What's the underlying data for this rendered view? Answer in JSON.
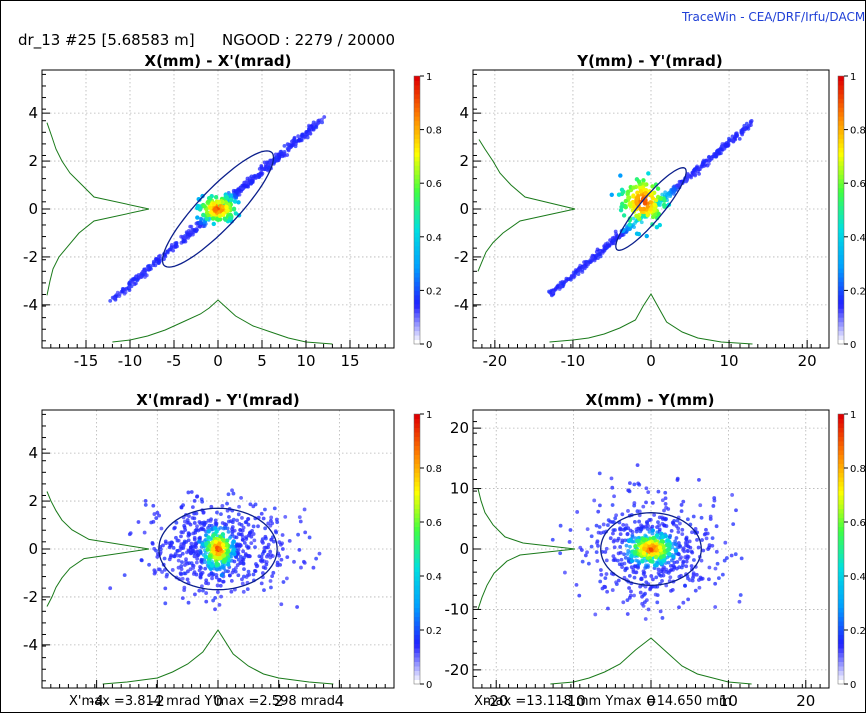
{
  "header": {
    "info": "dr_13 #25 [5.68583 m]",
    "ngood": "NGOOD : 2279 / 20000",
    "brand": "TraceWin - CEA/DRF/Irfu/DACM"
  },
  "colors": {
    "frame": "#000000",
    "grid": "#b4b4b4",
    "ellipse": "#0b1f8c",
    "profile": "#1a7a1a",
    "colormap": [
      "#ffffff",
      "#1f1fff",
      "#00a0ff",
      "#00e0e0",
      "#40ff40",
      "#ffff00",
      "#ff8000",
      "#e00000"
    ]
  },
  "footers": {
    "left": "X'max =3.814 mrad  Y'max =2.598 mrad",
    "right": "Xmax =13.118 mm  Ymax =14.650 mm"
  },
  "chart_data": [
    {
      "type": "scatter",
      "id": "xxp",
      "title": "X(mm) - X'(mrad)",
      "xlabel": "",
      "ylabel": "",
      "xlim": [
        -20,
        20
      ],
      "ylim": [
        -5.8,
        5.8
      ],
      "xticks": [
        -15,
        -10,
        -5,
        0,
        5,
        10,
        15
      ],
      "yticks": [
        4,
        2,
        0,
        -2,
        -4
      ],
      "grid": true,
      "colorbar": {
        "range": [
          0,
          1
        ],
        "ticks": [
          "1",
          "0.8",
          "0.6",
          "0.4",
          "0.2",
          "0"
        ]
      },
      "ellipse": {
        "center": [
          0,
          0
        ],
        "semi_major": [
          6.3,
          2.2
        ],
        "semi_minor": [
          -1.0,
          1.0
        ]
      },
      "distribution": {
        "axis": [
          12.0,
          3.8
        ],
        "spread": 0.35,
        "n": 520,
        "core": [
          0,
          0
        ],
        "core_sd": [
          1.5,
          0.4
        ]
      },
      "profile_y": [
        [
          -3.6,
          0.3
        ],
        [
          -3.0,
          0.6
        ],
        [
          -2.5,
          0.9
        ],
        [
          -2.0,
          1.5
        ],
        [
          -1.5,
          2.5
        ],
        [
          -1.0,
          3.5
        ],
        [
          -0.5,
          5.0
        ],
        [
          0.0,
          10.5
        ],
        [
          0.5,
          5.0
        ],
        [
          1.0,
          3.8
        ],
        [
          1.5,
          2.6
        ],
        [
          2.0,
          1.8
        ],
        [
          2.5,
          1.2
        ],
        [
          3.0,
          0.8
        ],
        [
          3.6,
          0.3
        ]
      ],
      "profile_x": [
        [
          -12,
          0.2
        ],
        [
          -10,
          0.3
        ],
        [
          -8,
          0.5
        ],
        [
          -6,
          0.8
        ],
        [
          -4,
          1.2
        ],
        [
          -2,
          1.6
        ],
        [
          -1,
          1.9
        ],
        [
          0,
          2.3
        ],
        [
          1,
          1.9
        ],
        [
          2,
          1.5
        ],
        [
          4,
          1.0
        ],
        [
          6,
          0.7
        ],
        [
          8,
          0.4
        ],
        [
          10,
          0.2
        ],
        [
          13,
          0.1
        ]
      ]
    },
    {
      "type": "scatter",
      "id": "yyp",
      "title": "Y(mm) - Y'(mrad)",
      "xlabel": "",
      "ylabel": "",
      "xlim": [
        -22.8,
        22.8
      ],
      "ylim": [
        -5.8,
        5.8
      ],
      "xticks": [
        -20,
        -10,
        0,
        10,
        20
      ],
      "yticks": [
        4,
        2,
        0,
        -2,
        -4
      ],
      "grid": true,
      "colorbar": {
        "range": [
          0,
          1
        ],
        "ticks": [
          "1",
          "0.8",
          "0.6",
          "0.4",
          "0.2",
          "0"
        ]
      },
      "ellipse": {
        "center": [
          0,
          0
        ],
        "semi_major": [
          4.5,
          1.6
        ],
        "semi_minor": [
          -1.0,
          1.0
        ]
      },
      "distribution": {
        "axis": [
          13.0,
          3.6
        ],
        "spread": 0.3,
        "n": 480,
        "core": [
          -1.0,
          0.3
        ],
        "core_sd": [
          2.2,
          0.8
        ]
      },
      "profile_y": [
        [
          -2.6,
          0.3
        ],
        [
          -2.2,
          0.7
        ],
        [
          -1.8,
          1.1
        ],
        [
          -1.4,
          1.8
        ],
        [
          -1.0,
          2.8
        ],
        [
          -0.5,
          4.5
        ],
        [
          0.0,
          10.0
        ],
        [
          0.5,
          5.0
        ],
        [
          1.0,
          3.6
        ],
        [
          1.5,
          2.5
        ],
        [
          2.0,
          1.8
        ],
        [
          2.5,
          1.0
        ],
        [
          2.9,
          0.4
        ]
      ],
      "profile_x": [
        [
          -13,
          0.2
        ],
        [
          -10,
          0.3
        ],
        [
          -8,
          0.4
        ],
        [
          -6,
          0.6
        ],
        [
          -4,
          0.9
        ],
        [
          -2,
          1.3
        ],
        [
          -1,
          2.0
        ],
        [
          0,
          2.6
        ],
        [
          1,
          1.9
        ],
        [
          2,
          1.2
        ],
        [
          4,
          0.7
        ],
        [
          6,
          0.4
        ],
        [
          9,
          0.2
        ],
        [
          13,
          0.1
        ]
      ]
    },
    {
      "type": "scatter",
      "id": "xpyp",
      "title": "X'(mrad) - Y'(mrad)",
      "xlabel": "",
      "ylabel": "",
      "xlim": [
        -5.8,
        5.8
      ],
      "ylim": [
        -5.8,
        5.8
      ],
      "xticks": [
        -4,
        -2,
        0,
        2,
        4
      ],
      "yticks": [
        4,
        2,
        0,
        -2,
        -4
      ],
      "grid": true,
      "colorbar": {
        "range": [
          0,
          1
        ],
        "ticks": [
          "1",
          "0.8",
          "0.6",
          "0.4",
          "0.2",
          "0"
        ]
      },
      "ellipse": {
        "center": [
          0,
          0
        ],
        "semi_major": [
          1.95,
          0
        ],
        "semi_minor": [
          0,
          1.7
        ]
      },
      "distribution": {
        "axis": [
          1.0,
          0.0
        ],
        "spread": 0.0,
        "n": 620,
        "cloud": true,
        "sd": [
          1.15,
          0.95
        ],
        "maxabs": [
          3.8,
          2.6
        ],
        "core": [
          0,
          0
        ],
        "core_sd": [
          0.3,
          0.5
        ]
      },
      "profile_y": [
        [
          -2.4,
          0.3
        ],
        [
          -2.0,
          0.8
        ],
        [
          -1.6,
          1.2
        ],
        [
          -1.2,
          1.8
        ],
        [
          -0.8,
          2.6
        ],
        [
          -0.4,
          4.0
        ],
        [
          0.0,
          10.5
        ],
        [
          0.4,
          4.5
        ],
        [
          0.8,
          2.8
        ],
        [
          1.2,
          1.8
        ],
        [
          1.6,
          1.2
        ],
        [
          2.0,
          0.7
        ],
        [
          2.4,
          0.3
        ]
      ],
      "profile_x": [
        [
          -3.8,
          0.1
        ],
        [
          -3,
          0.2
        ],
        [
          -2,
          0.4
        ],
        [
          -1.5,
          0.7
        ],
        [
          -1,
          1.1
        ],
        [
          -0.5,
          1.7
        ],
        [
          0,
          2.8
        ],
        [
          0.5,
          1.6
        ],
        [
          1,
          1.0
        ],
        [
          1.5,
          0.6
        ],
        [
          2,
          0.4
        ],
        [
          3,
          0.2
        ],
        [
          3.8,
          0.1
        ]
      ]
    },
    {
      "type": "scatter",
      "id": "xy",
      "title": "X(mm) - Y(mm)",
      "xlabel": "",
      "ylabel": "",
      "xlim": [
        -23,
        23
      ],
      "ylim": [
        -23,
        23
      ],
      "xticks": [
        -20,
        -10,
        0,
        10,
        20
      ],
      "yticks": [
        20,
        10,
        0,
        -10,
        -20
      ],
      "grid": true,
      "colorbar": {
        "range": [
          0,
          1
        ],
        "ticks": [
          "1",
          "0.8",
          "0.6",
          "0.4",
          "0.2",
          "0"
        ]
      },
      "ellipse": {
        "center": [
          0,
          0
        ],
        "semi_major": [
          6.5,
          0
        ],
        "semi_minor": [
          0,
          6.0
        ]
      },
      "distribution": {
        "axis": [
          1.0,
          0.0
        ],
        "spread": 0.0,
        "n": 560,
        "cloud": true,
        "sd": [
          4.2,
          4.2
        ],
        "maxabs": [
          13.1,
          14.6
        ],
        "core": [
          0,
          0
        ],
        "core_sd": [
          1.8,
          1.6
        ]
      },
      "profile_y": [
        [
          -10,
          0.3
        ],
        [
          -8,
          0.7
        ],
        [
          -6,
          1.2
        ],
        [
          -4,
          1.9
        ],
        [
          -2,
          3.2
        ],
        [
          -1,
          4.5
        ],
        [
          0,
          10.0
        ],
        [
          1,
          4.8
        ],
        [
          2,
          3.0
        ],
        [
          4,
          1.8
        ],
        [
          6,
          1.0
        ],
        [
          8,
          0.6
        ],
        [
          10,
          0.3
        ]
      ],
      "profile_x": [
        [
          -13,
          0.1
        ],
        [
          -10,
          0.2
        ],
        [
          -8,
          0.4
        ],
        [
          -6,
          0.7
        ],
        [
          -4,
          1.1
        ],
        [
          -2,
          1.8
        ],
        [
          0,
          2.4
        ],
        [
          2,
          1.7
        ],
        [
          4,
          1.0
        ],
        [
          6,
          0.6
        ],
        [
          8,
          0.4
        ],
        [
          10,
          0.2
        ],
        [
          13,
          0.1
        ]
      ]
    }
  ]
}
